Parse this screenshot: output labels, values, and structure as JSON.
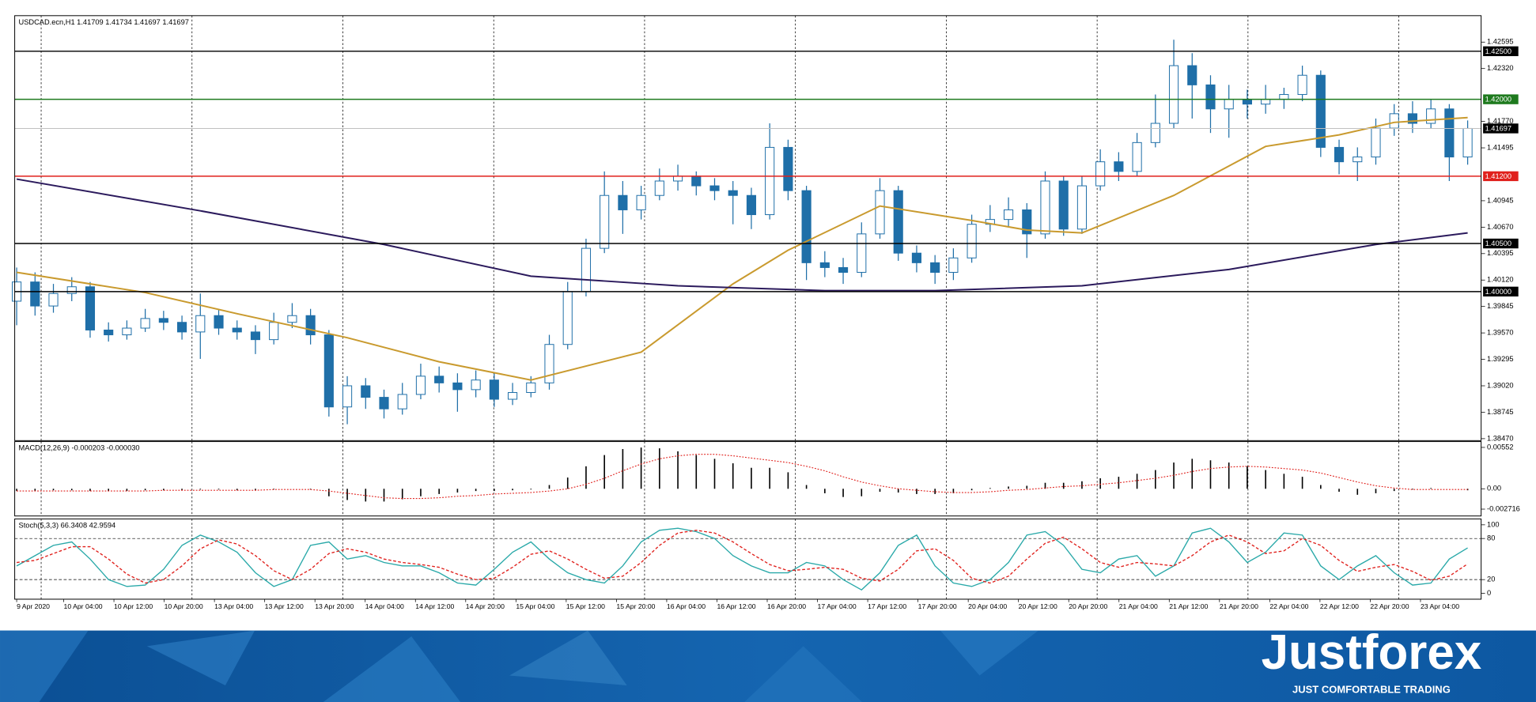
{
  "chart_data": [
    {
      "type": "candlestick",
      "title": "USDCAD.ecn,H1  1.41709 1.41734 1.41697 1.41697",
      "ylim": [
        1.3845,
        1.4287
      ],
      "yticks": [
        1.42595,
        {
          "value": 1.4232,
          "label": "1.42320"
        },
        {
          "value": 1.4177,
          "label": "1.41770"
        },
        1.41495,
        1.40945,
        {
          "value": 1.4067,
          "label": "1.40670"
        },
        1.40395,
        {
          "value": 1.4012,
          "label": "1.40120"
        },
        1.39845,
        {
          "value": 1.3957,
          "label": "1.39570"
        },
        1.39295,
        {
          "value": 1.3902,
          "label": "1.39020"
        },
        1.38745,
        {
          "value": 1.3847,
          "label": "1.38470"
        }
      ],
      "time_labels": [
        "9 Apr 2020",
        "10 Apr 04:00",
        "10 Apr 12:00",
        "10 Apr 20:00",
        "13 Apr 04:00",
        "13 Apr 12:00",
        "13 Apr 20:00",
        "14 Apr 04:00",
        "14 Apr 12:00",
        "14 Apr 20:00",
        "15 Apr 04:00",
        "15 Apr 12:00",
        "15 Apr 20:00",
        "16 Apr 04:00",
        "16 Apr 12:00",
        "16 Apr 20:00",
        "17 Apr 04:00",
        "17 Apr 12:00",
        "17 Apr 20:00",
        "20 Apr 04:00",
        "20 Apr 12:00",
        "20 Apr 20:00",
        "21 Apr 04:00",
        "21 Apr 12:00",
        "21 Apr 20:00",
        "22 Apr 04:00",
        "22 Apr 12:00",
        "22 Apr 20:00",
        "23 Apr 04:00"
      ],
      "up_color": "#ffffff",
      "down_color": "#1f6fa8",
      "wick_color": "#1f6fa8",
      "open": [
        1.399,
        1.401,
        1.3985,
        1.3998,
        1.4005,
        1.396,
        1.3955,
        1.3962,
        1.3972,
        1.3968,
        1.3958,
        1.3975,
        1.3962,
        1.3958,
        1.395,
        1.3968,
        1.3975,
        1.3955,
        1.388,
        1.3902,
        1.389,
        1.3878,
        1.3893,
        1.3912,
        1.3905,
        1.3898,
        1.3908,
        1.3888,
        1.3895,
        1.3905,
        1.3945,
        1.4,
        1.4045,
        1.41,
        1.4085,
        1.41,
        1.4115,
        1.412,
        1.411,
        1.4105,
        1.41,
        1.408,
        1.415,
        1.4105,
        1.403,
        1.4025,
        1.402,
        1.406,
        1.4105,
        1.404,
        1.403,
        1.402,
        1.4035,
        1.407,
        1.4075,
        1.4085,
        1.406,
        1.4115,
        1.4065,
        1.411,
        1.4135,
        1.4125,
        1.4155,
        1.4175,
        1.4235,
        1.4215,
        1.419,
        1.42,
        1.4195,
        1.42,
        1.4205,
        1.4225,
        1.415,
        1.4135,
        1.414,
        1.417,
        1.4185,
        1.4175,
        1.419,
        1.414
      ],
      "high": [
        1.4025,
        1.402,
        1.4008,
        1.4015,
        1.401,
        1.3968,
        1.397,
        1.3982,
        1.398,
        1.3975,
        1.3998,
        1.3982,
        1.397,
        1.3965,
        1.3978,
        1.3988,
        1.3982,
        1.396,
        1.3912,
        1.391,
        1.3898,
        1.3905,
        1.3925,
        1.3922,
        1.3915,
        1.3918,
        1.3915,
        1.3905,
        1.3912,
        1.3955,
        1.401,
        1.4055,
        1.4125,
        1.4115,
        1.411,
        1.4128,
        1.4132,
        1.4125,
        1.4118,
        1.4115,
        1.4108,
        1.4175,
        1.4158,
        1.411,
        1.4042,
        1.4035,
        1.4072,
        1.4118,
        1.411,
        1.4048,
        1.4038,
        1.4045,
        1.408,
        1.409,
        1.4098,
        1.4092,
        1.4125,
        1.412,
        1.412,
        1.4148,
        1.4145,
        1.4165,
        1.4205,
        1.4262,
        1.4248,
        1.4225,
        1.4215,
        1.421,
        1.4215,
        1.4212,
        1.4235,
        1.423,
        1.4158,
        1.415,
        1.418,
        1.4195,
        1.4198,
        1.42,
        1.4195,
        1.4178
      ],
      "low": [
        1.3965,
        1.3975,
        1.3978,
        1.399,
        1.3952,
        1.3948,
        1.395,
        1.3958,
        1.396,
        1.395,
        1.393,
        1.3955,
        1.395,
        1.3935,
        1.3945,
        1.3962,
        1.3945,
        1.387,
        1.3862,
        1.3878,
        1.3868,
        1.3872,
        1.3888,
        1.3895,
        1.3875,
        1.389,
        1.388,
        1.3882,
        1.389,
        1.3898,
        1.394,
        1.3995,
        1.404,
        1.406,
        1.4075,
        1.4095,
        1.4105,
        1.41,
        1.4095,
        1.407,
        1.4065,
        1.4075,
        1.4095,
        1.4012,
        1.4015,
        1.4008,
        1.4015,
        1.4055,
        1.4032,
        1.402,
        1.4008,
        1.4012,
        1.403,
        1.4062,
        1.4068,
        1.4035,
        1.4055,
        1.4058,
        1.406,
        1.4105,
        1.4115,
        1.412,
        1.415,
        1.417,
        1.418,
        1.4165,
        1.416,
        1.418,
        1.4185,
        1.419,
        1.4198,
        1.414,
        1.4122,
        1.4115,
        1.4132,
        1.4162,
        1.4165,
        1.417,
        1.4115,
        1.4132
      ],
      "close": [
        1.401,
        1.3985,
        1.3998,
        1.4005,
        1.396,
        1.3955,
        1.3962,
        1.3972,
        1.3968,
        1.3958,
        1.3975,
        1.3962,
        1.3958,
        1.395,
        1.3968,
        1.3975,
        1.3955,
        1.388,
        1.3902,
        1.389,
        1.3878,
        1.3893,
        1.3912,
        1.3905,
        1.3898,
        1.3908,
        1.3888,
        1.3895,
        1.3905,
        1.3945,
        1.4,
        1.4045,
        1.41,
        1.4085,
        1.41,
        1.4115,
        1.412,
        1.411,
        1.4105,
        1.41,
        1.408,
        1.415,
        1.4105,
        1.403,
        1.4025,
        1.402,
        1.406,
        1.4105,
        1.404,
        1.403,
        1.402,
        1.4035,
        1.407,
        1.4075,
        1.4085,
        1.406,
        1.4115,
        1.4065,
        1.411,
        1.4135,
        1.4125,
        1.4155,
        1.4175,
        1.4235,
        1.4215,
        1.419,
        1.42,
        1.4195,
        1.42,
        1.4205,
        1.4225,
        1.415,
        1.4135,
        1.414,
        1.417,
        1.4185,
        1.4175,
        1.419,
        1.414,
        1.41697
      ],
      "series": [
        {
          "color": "#c99a2e",
          "x": [
            0,
            7,
            12,
            18,
            23,
            28,
            34,
            39,
            42,
            47,
            52,
            55,
            58,
            63,
            68,
            72,
            75,
            79
          ],
          "values": [
            1.402,
            1.3999,
            1.3977,
            1.3952,
            1.3927,
            1.3908,
            1.3937,
            1.4008,
            1.4043,
            1.4089,
            1.4074,
            1.4064,
            1.4061,
            1.41,
            1.4151,
            1.4163,
            1.4176,
            1.4181
          ]
        },
        {
          "color": "#2b1a5c",
          "x": [
            0,
            10,
            20,
            28,
            36,
            44,
            50,
            58,
            66,
            74,
            79
          ],
          "values": [
            1.4117,
            1.4084,
            1.4049,
            1.4016,
            1.4006,
            1.4001,
            1.4001,
            1.4006,
            1.4023,
            1.4049,
            1.4061
          ]
        }
      ],
      "levels": [
        {
          "value": 1.425,
          "label": "1.42500",
          "color": "#000000"
        },
        {
          "value": 1.42,
          "label": "1.42000",
          "color": "#1e7a1e"
        },
        {
          "value": 1.412,
          "label": "1.41200",
          "color": "#e0201c"
        },
        {
          "value": 1.405,
          "label": "1.40500",
          "color": "#000000"
        },
        {
          "value": 1.4,
          "label": "1.40000",
          "color": "#000000"
        }
      ],
      "last_price": {
        "value": 1.41697,
        "color": "#c0c0c0"
      }
    },
    {
      "type": "macd",
      "title": "MACD(12,26,9) -0.000203 -0.000030",
      "ylim": [
        -0.00363,
        0.0063
      ],
      "yticks": [
        0.00552,
        {
          "value": 0,
          "label": "0.00"
        },
        -0.002716
      ],
      "histogram": {
        "color": "#000000",
        "values": [
          -0.0003,
          -0.0003,
          -0.0002,
          -0.0002,
          -0.0003,
          -0.0003,
          -0.0003,
          -0.0002,
          -0.0002,
          -0.0002,
          -0.0001,
          -0.0001,
          -0.0002,
          -0.0002,
          -0.0001,
          0,
          -0.0001,
          -0.001,
          -0.0015,
          -0.0017,
          -0.0017,
          -0.0014,
          -0.001,
          -0.0007,
          -0.0005,
          -0.0003,
          -0.0003,
          -0.0002,
          -0.0001,
          0.0005,
          0.0015,
          0.003,
          0.0045,
          0.0053,
          0.0055,
          0.0054,
          0.005,
          0.0045,
          0.004,
          0.0034,
          0.0028,
          0.0028,
          0.0022,
          0.0005,
          -0.0006,
          -0.0011,
          -0.001,
          -0.0004,
          -0.0005,
          -0.0007,
          -0.0007,
          -0.0006,
          -0.0002,
          0.0001,
          0.0003,
          0.0004,
          0.0008,
          0.0008,
          0.001,
          0.0014,
          0.0016,
          0.002,
          0.0025,
          0.0035,
          0.004,
          0.0038,
          0.0035,
          0.003,
          0.0025,
          0.002,
          0.0016,
          0.0005,
          -0.0004,
          -0.0008,
          -0.0006,
          -0.0003,
          -0.0001,
          0.0001,
          0,
          -0.0002
        ]
      },
      "signal": {
        "color": "#e0201c",
        "values": [
          -0.0003,
          -0.0003,
          -0.0003,
          -0.0003,
          -0.0003,
          -0.0003,
          -0.0003,
          -0.0003,
          -0.0002,
          -0.0002,
          -0.0002,
          -0.0002,
          -0.0002,
          -0.0002,
          -0.0001,
          -0.0001,
          -0.0001,
          -0.0003,
          -0.0006,
          -0.0009,
          -0.0012,
          -0.0013,
          -0.0013,
          -0.0012,
          -0.001,
          -0.0009,
          -0.0007,
          -0.0006,
          -0.0005,
          -0.0003,
          0,
          0.0006,
          0.0014,
          0.0024,
          0.0033,
          0.004,
          0.0044,
          0.0046,
          0.0046,
          0.0044,
          0.0041,
          0.0038,
          0.0035,
          0.003,
          0.0024,
          0.0016,
          0.0009,
          0.0004,
          0,
          -0.0002,
          -0.0004,
          -0.0005,
          -0.0005,
          -0.0004,
          -0.0002,
          -0.0001,
          0.0001,
          0.0003,
          0.0004,
          0.0006,
          0.0008,
          0.0011,
          0.0014,
          0.0018,
          0.0023,
          0.0027,
          0.0029,
          0.003,
          0.0029,
          0.0027,
          0.0025,
          0.0021,
          0.0015,
          0.0009,
          0.0004,
          0.0001,
          -0.0001,
          -0.0001,
          -0.0001,
          -0.0001
        ]
      }
    },
    {
      "type": "stochastic",
      "title": "Stoch(5,3,3) 66.3408 42.9594",
      "ylim": [
        -8.6,
        108.6
      ],
      "yticks": [
        100,
        80,
        20,
        0
      ],
      "dashed_levels": [
        80,
        20
      ],
      "series": [
        {
          "color": "#2aa9a9",
          "style": "solid",
          "values": [
            40,
            55,
            70,
            75,
            50,
            20,
            10,
            12,
            35,
            70,
            85,
            75,
            60,
            30,
            10,
            20,
            70,
            75,
            50,
            55,
            45,
            40,
            40,
            30,
            15,
            12,
            35,
            60,
            75,
            50,
            30,
            20,
            15,
            40,
            75,
            92,
            95,
            90,
            80,
            55,
            40,
            30,
            30,
            45,
            40,
            20,
            5,
            30,
            70,
            85,
            40,
            15,
            10,
            20,
            45,
            85,
            90,
            70,
            35,
            30,
            50,
            55,
            25,
            40,
            88,
            95,
            75,
            45,
            60,
            88,
            85,
            40,
            20,
            40,
            55,
            30,
            12,
            15,
            50,
            66.3408
          ]
        },
        {
          "color": "#e0201c",
          "style": "dashed",
          "values": [
            45,
            48,
            58,
            68,
            68,
            50,
            28,
            15,
            20,
            40,
            65,
            78,
            72,
            55,
            33,
            20,
            35,
            58,
            65,
            60,
            50,
            45,
            42,
            38,
            28,
            20,
            22,
            38,
            57,
            62,
            50,
            35,
            22,
            25,
            45,
            70,
            88,
            92,
            88,
            75,
            58,
            42,
            33,
            35,
            38,
            35,
            22,
            18,
            35,
            62,
            65,
            48,
            22,
            15,
            25,
            50,
            73,
            82,
            65,
            45,
            38,
            45,
            43,
            40,
            55,
            75,
            85,
            75,
            58,
            62,
            80,
            70,
            48,
            32,
            38,
            42,
            32,
            19,
            25,
            42.9594
          ]
        }
      ]
    }
  ],
  "brand": {
    "name": "Justforex",
    "tagline": "JUST COMFORTABLE TRADING"
  }
}
